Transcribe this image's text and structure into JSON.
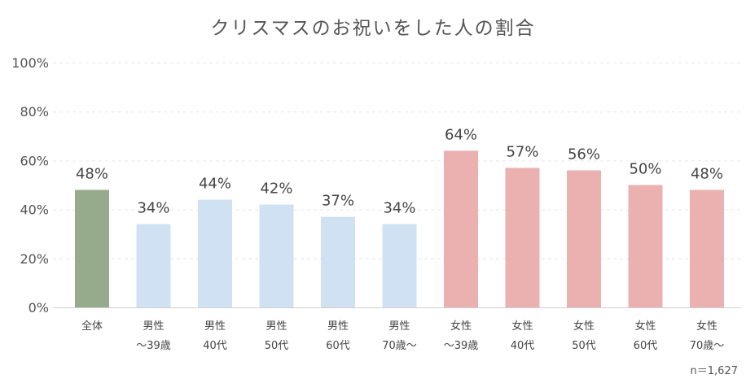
{
  "chart_data": {
    "type": "bar",
    "title": "クリスマスのお祝いをした人の割合",
    "categories": [
      [
        "全体"
      ],
      [
        "男性",
        "～39歳"
      ],
      [
        "男性",
        "40代"
      ],
      [
        "男性",
        "50代"
      ],
      [
        "男性",
        "60代"
      ],
      [
        "男性",
        "70歳～"
      ],
      [
        "女性",
        "～39歳"
      ],
      [
        "女性",
        "40代"
      ],
      [
        "女性",
        "50代"
      ],
      [
        "女性",
        "60代"
      ],
      [
        "女性",
        "70歳～"
      ]
    ],
    "values": [
      48,
      34,
      44,
      42,
      37,
      34,
      64,
      57,
      56,
      50,
      48
    ],
    "data_labels": [
      "48%",
      "34%",
      "44%",
      "42%",
      "37%",
      "34%",
      "64%",
      "57%",
      "56%",
      "50%",
      "48%"
    ],
    "y_ticks": [
      "0%",
      "20%",
      "40%",
      "60%",
      "80%",
      "100%"
    ],
    "ylim": [
      0,
      100
    ],
    "grid": true,
    "colors": [
      "#96aa8c",
      "#cfe1f2",
      "#cfe1f2",
      "#cfe1f2",
      "#cfe1f2",
      "#cfe1f2",
      "#ebb1b1",
      "#ebb1b1",
      "#ebb1b1",
      "#ebb1b1",
      "#ebb1b1"
    ],
    "note": "n＝1,627"
  }
}
